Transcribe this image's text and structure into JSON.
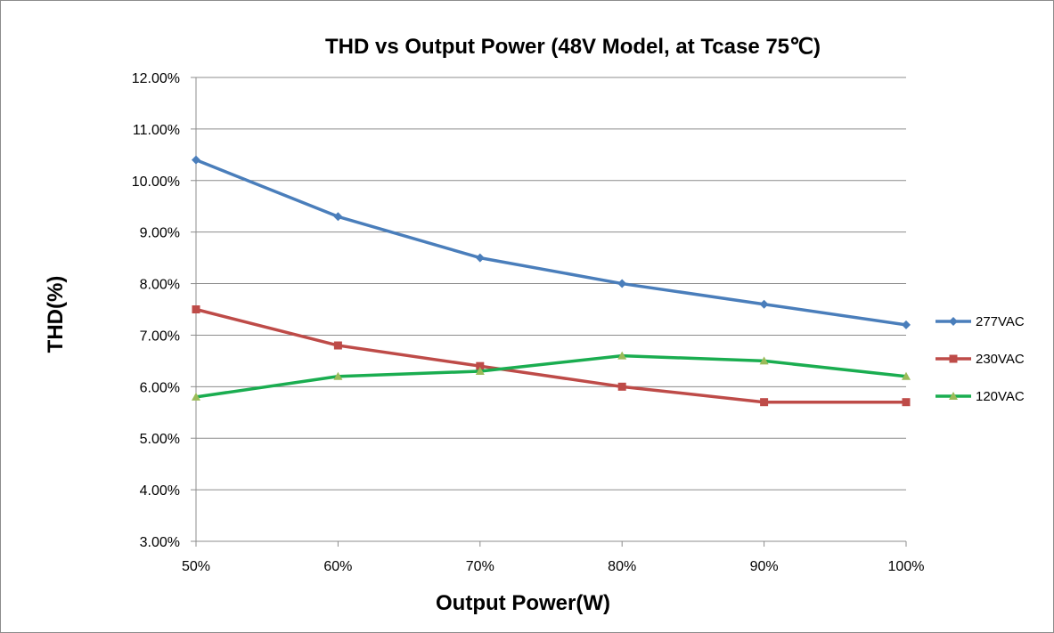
{
  "chart_data": {
    "type": "line",
    "title": "THD vs Output Power (48V Model, at Tcase 75℃)",
    "xlabel": "Output Power(W)",
    "ylabel": "THD(%)",
    "categories": [
      "50%",
      "60%",
      "70%",
      "80%",
      "90%",
      "100%"
    ],
    "ylim": [
      3.0,
      12.0
    ],
    "yticks": [
      3.0,
      4.0,
      5.0,
      6.0,
      7.0,
      8.0,
      9.0,
      10.0,
      11.0,
      12.0
    ],
    "ytick_labels": [
      "3.00%",
      "4.00%",
      "5.00%",
      "6.00%",
      "7.00%",
      "8.00%",
      "9.00%",
      "10.00%",
      "11.00%",
      "12.00%"
    ],
    "grid": "horizontal",
    "legend_position": "right",
    "series": [
      {
        "name": "277VAC",
        "values": [
          10.4,
          9.3,
          8.5,
          8.0,
          7.6,
          7.2
        ],
        "color": "#4a7ebb",
        "marker": "diamond"
      },
      {
        "name": "230VAC",
        "values": [
          7.5,
          6.8,
          6.4,
          6.0,
          5.7,
          5.7
        ],
        "color": "#be4b48",
        "marker": "square"
      },
      {
        "name": "120VAC",
        "values": [
          5.8,
          6.2,
          6.3,
          6.6,
          6.5,
          6.2
        ],
        "color": "#1aad50",
        "marker": "triangle",
        "marker_color": "#9bbb59"
      }
    ]
  }
}
